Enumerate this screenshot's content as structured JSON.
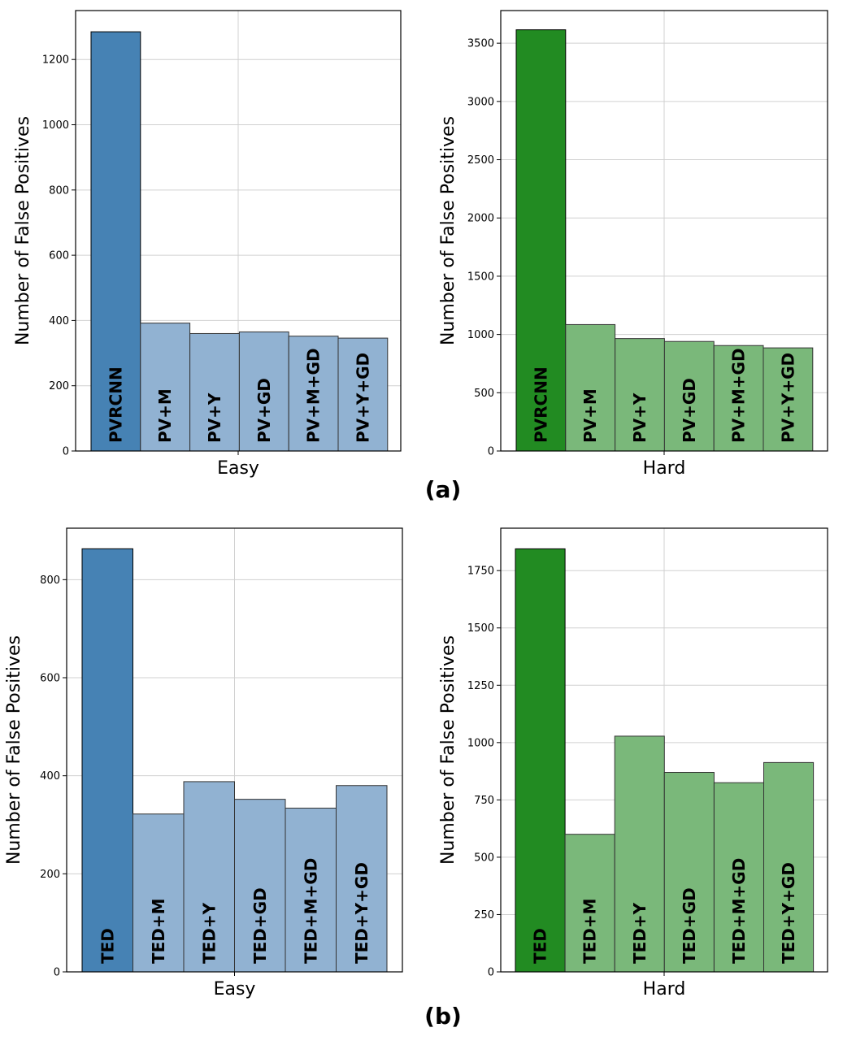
{
  "panel_labels": [
    "(a)",
    "(b)"
  ],
  "colors": {
    "easy_main": "#4682b4",
    "easy_other": "#91b2d2",
    "hard_main": "#228b22",
    "hard_other": "#7ab87a"
  },
  "chart_data": [
    {
      "type": "bar",
      "title": "",
      "xlabel": "Easy",
      "ylabel": "Number of False Positives",
      "categories": [
        "PVRCNN",
        "PV+M",
        "PV+Y",
        "PV+GD",
        "PV+M+GD",
        "PV+Y+GD"
      ],
      "values": [
        1285,
        392,
        360,
        365,
        352,
        346
      ],
      "ylim": [
        0,
        1350
      ],
      "yticks": [
        0,
        200,
        400,
        600,
        800,
        1000,
        1200
      ],
      "palette": "easy",
      "grid": true
    },
    {
      "type": "bar",
      "title": "",
      "xlabel": "Hard",
      "ylabel": "Number of False Positives",
      "categories": [
        "PVRCNN",
        "PV+M",
        "PV+Y",
        "PV+GD",
        "PV+M+GD",
        "PV+Y+GD"
      ],
      "values": [
        3615,
        1085,
        965,
        940,
        905,
        885
      ],
      "ylim": [
        0,
        3780
      ],
      "yticks": [
        0,
        500,
        1000,
        1500,
        2000,
        2500,
        3000,
        3500
      ],
      "palette": "hard",
      "grid": true
    },
    {
      "type": "bar",
      "title": "",
      "xlabel": "Easy",
      "ylabel": "Number of False Positives",
      "categories": [
        "TED",
        "TED+M",
        "TED+Y",
        "TED+GD",
        "TED+M+GD",
        "TED+Y+GD"
      ],
      "values": [
        863,
        322,
        388,
        352,
        334,
        380
      ],
      "ylim": [
        0,
        905
      ],
      "yticks": [
        0,
        200,
        400,
        600,
        800
      ],
      "palette": "easy",
      "grid": true
    },
    {
      "type": "bar",
      "title": "",
      "xlabel": "Hard",
      "ylabel": "Number of False Positives",
      "categories": [
        "TED",
        "TED+M",
        "TED+Y",
        "TED+GD",
        "TED+M+GD",
        "TED+Y+GD"
      ],
      "values": [
        1845,
        600,
        1028,
        870,
        825,
        913
      ],
      "ylim": [
        0,
        1935
      ],
      "yticks": [
        0,
        250,
        500,
        750,
        1000,
        1250,
        1500,
        1750
      ],
      "palette": "hard",
      "grid": true
    }
  ]
}
